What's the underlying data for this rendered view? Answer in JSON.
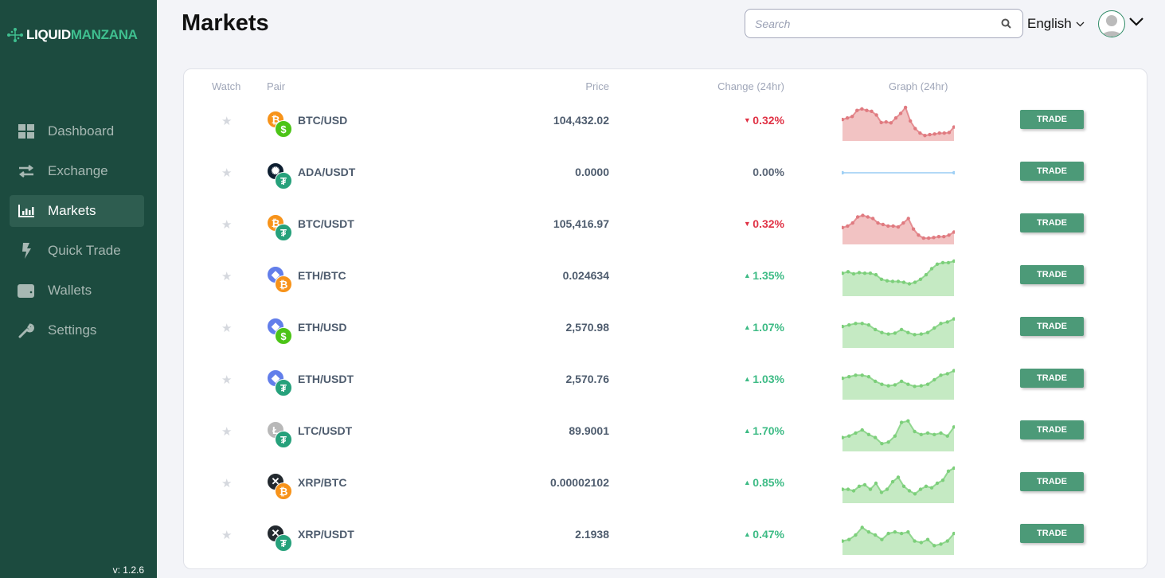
{
  "brand": {
    "part1": "LIQUID",
    "part2": "MANZANA"
  },
  "sidebar": {
    "items": [
      {
        "label": "Dashboard",
        "icon": "dashboard-icon"
      },
      {
        "label": "Exchange",
        "icon": "exchange-icon"
      },
      {
        "label": "Markets",
        "icon": "chart-bar-icon",
        "active": true
      },
      {
        "label": "Quick Trade",
        "icon": "bolt-icon"
      },
      {
        "label": "Wallets",
        "icon": "wallet-icon"
      },
      {
        "label": "Settings",
        "icon": "wrench-icon"
      }
    ],
    "version": "v: 1.2.6"
  },
  "header": {
    "title": "Markets",
    "search_placeholder": "Search",
    "language": "English"
  },
  "table": {
    "headers": {
      "watch": "Watch",
      "pair": "Pair",
      "price": "Price",
      "change": "Change (24hr)",
      "graph": "Graph (24hr)"
    },
    "trade_label": "TRADE",
    "colors": {
      "up": "#3dbb85",
      "down": "#e03245",
      "neutral": "#5a6677"
    },
    "rows": [
      {
        "pair": "BTC/USD",
        "base": "btc",
        "quote": "usd",
        "price": "104,432.02",
        "change": "0.32%",
        "dir": "down",
        "graph": [
          0.55,
          0.6,
          0.65,
          0.85,
          0.9,
          0.85,
          0.82,
          0.7,
          0.45,
          0.47,
          0.44,
          0.6,
          0.75,
          0.95,
          0.5,
          0.25,
          0.1,
          0.02,
          0.05,
          0.07,
          0.1,
          0.1,
          0.12,
          0.3
        ]
      },
      {
        "pair": "ADA/USDT",
        "base": "ada",
        "quote": "usdt",
        "price": "0.0000",
        "change": "0.00%",
        "dir": "flat",
        "graph": [
          0.5,
          0.5
        ]
      },
      {
        "pair": "BTC/USDT",
        "base": "btc",
        "quote": "usdt",
        "price": "105,416.97",
        "change": "0.32%",
        "dir": "down",
        "graph": [
          0.4,
          0.45,
          0.55,
          0.75,
          0.8,
          0.75,
          0.7,
          0.55,
          0.5,
          0.45,
          0.45,
          0.42,
          0.55,
          0.7,
          0.35,
          0.15,
          0.05,
          0.05,
          0.07,
          0.1,
          0.1,
          0.15,
          0.25
        ]
      },
      {
        "pair": "ETH/BTC",
        "base": "eth",
        "quote": "btc",
        "price": "0.024634",
        "change": "1.35%",
        "dir": "up",
        "graph": [
          0.6,
          0.65,
          0.58,
          0.62,
          0.6,
          0.6,
          0.55,
          0.4,
          0.35,
          0.33,
          0.33,
          0.3,
          0.25,
          0.3,
          0.4,
          0.55,
          0.75,
          0.9,
          0.95,
          0.95,
          1.0
        ]
      },
      {
        "pair": "ETH/USD",
        "base": "eth",
        "quote": "usd",
        "price": "2,570.98",
        "change": "1.07%",
        "dir": "up",
        "graph": [
          0.55,
          0.6,
          0.65,
          0.65,
          0.6,
          0.45,
          0.35,
          0.3,
          0.33,
          0.45,
          0.35,
          0.28,
          0.3,
          0.35,
          0.5,
          0.65,
          0.7,
          0.8
        ]
      },
      {
        "pair": "ETH/USDT",
        "base": "eth",
        "quote": "usdt",
        "price": "2,570.76",
        "change": "1.03%",
        "dir": "up",
        "graph": [
          0.55,
          0.6,
          0.65,
          0.65,
          0.6,
          0.45,
          0.35,
          0.3,
          0.33,
          0.45,
          0.35,
          0.28,
          0.3,
          0.35,
          0.5,
          0.65,
          0.7,
          0.8
        ]
      },
      {
        "pair": "LTC/USDT",
        "base": "ltc",
        "quote": "usdt",
        "price": "89.9001",
        "change": "1.70%",
        "dir": "up",
        "graph": [
          0.3,
          0.35,
          0.45,
          0.55,
          0.4,
          0.3,
          0.1,
          0.15,
          0.35,
          0.8,
          0.85,
          0.5,
          0.4,
          0.45,
          0.4,
          0.45,
          0.35,
          0.65
        ]
      },
      {
        "pair": "XRP/BTC",
        "base": "xrp",
        "quote": "btc",
        "price": "0.00002102",
        "change": "0.85%",
        "dir": "up",
        "graph": [
          0.3,
          0.3,
          0.25,
          0.4,
          0.45,
          0.3,
          0.5,
          0.2,
          0.3,
          0.55,
          0.7,
          0.4,
          0.25,
          0.15,
          0.3,
          0.4,
          0.35,
          0.5,
          0.6,
          0.9,
          1.0
        ]
      },
      {
        "pair": "XRP/USDT",
        "base": "xrp",
        "quote": "usdt",
        "price": "2.1938",
        "change": "0.47%",
        "dir": "up",
        "graph": [
          0.3,
          0.35,
          0.5,
          0.75,
          0.6,
          0.5,
          0.35,
          0.55,
          0.6,
          0.55,
          0.6,
          0.3,
          0.25,
          0.35,
          0.15,
          0.2,
          0.3,
          0.55
        ]
      }
    ]
  }
}
